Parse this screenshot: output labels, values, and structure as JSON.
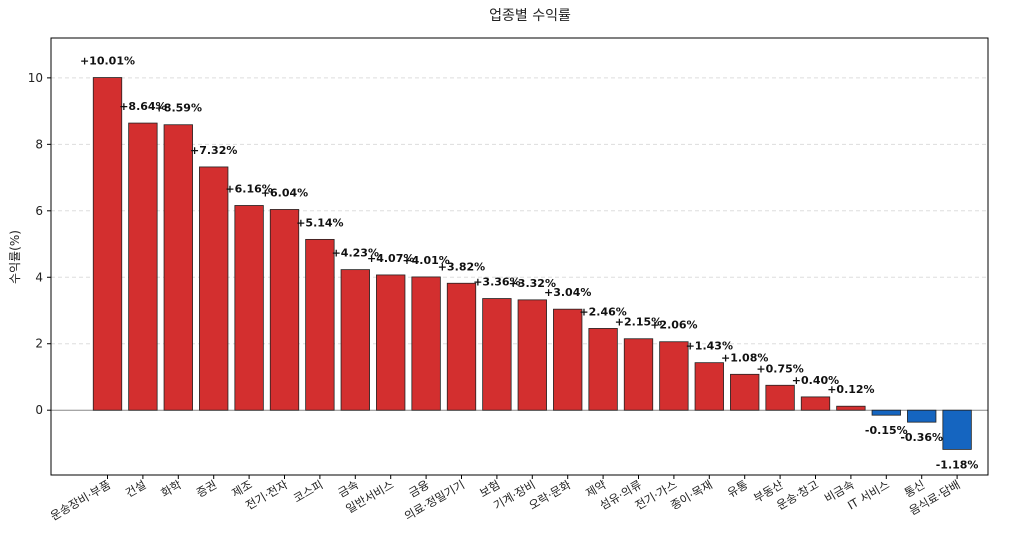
{
  "chart_data": {
    "type": "bar",
    "title": "업종별 수익률",
    "xlabel": "",
    "ylabel": "수익률(%)",
    "ylim": [
      -1.95,
      11.2
    ],
    "yticks": [
      0,
      2,
      4,
      6,
      8,
      10
    ],
    "grid": "horizontal-dashed",
    "categories": [
      "운송장비·부품",
      "건설",
      "화학",
      "증권",
      "제조",
      "전기·전자",
      "코스피",
      "금속",
      "일반서비스",
      "금융",
      "의료·정밀기기",
      "보험",
      "기계·장비",
      "오락·문화",
      "제약",
      "섬유·의류",
      "전기·가스",
      "종이·목재",
      "유통",
      "부동산",
      "운송·창고",
      "비금속",
      "IT 서비스",
      "통신",
      "음식료·담배"
    ],
    "values": [
      10.01,
      8.64,
      8.59,
      7.32,
      6.16,
      6.04,
      5.14,
      4.23,
      4.07,
      4.01,
      3.82,
      3.36,
      3.32,
      3.04,
      2.46,
      2.15,
      2.06,
      1.43,
      1.08,
      0.75,
      0.4,
      0.12,
      -0.15,
      -0.36,
      -1.18
    ],
    "labels": [
      "+10.01%",
      "+8.64%",
      "+8.59%",
      "+7.32%",
      "+6.16%",
      "+6.04%",
      "+5.14%",
      "+4.23%",
      "+4.07%",
      "+4.01%",
      "+3.82%",
      "+3.36%",
      "+3.32%",
      "+3.04%",
      "+2.46%",
      "+2.15%",
      "+2.06%",
      "+1.43%",
      "+1.08%",
      "+0.75%",
      "+0.40%",
      "+0.12%",
      "-0.15%",
      "-0.36%",
      "-1.18%"
    ],
    "colors": {
      "positive": "#d32f2f",
      "negative": "#1565c0",
      "edge": "#222222"
    }
  }
}
